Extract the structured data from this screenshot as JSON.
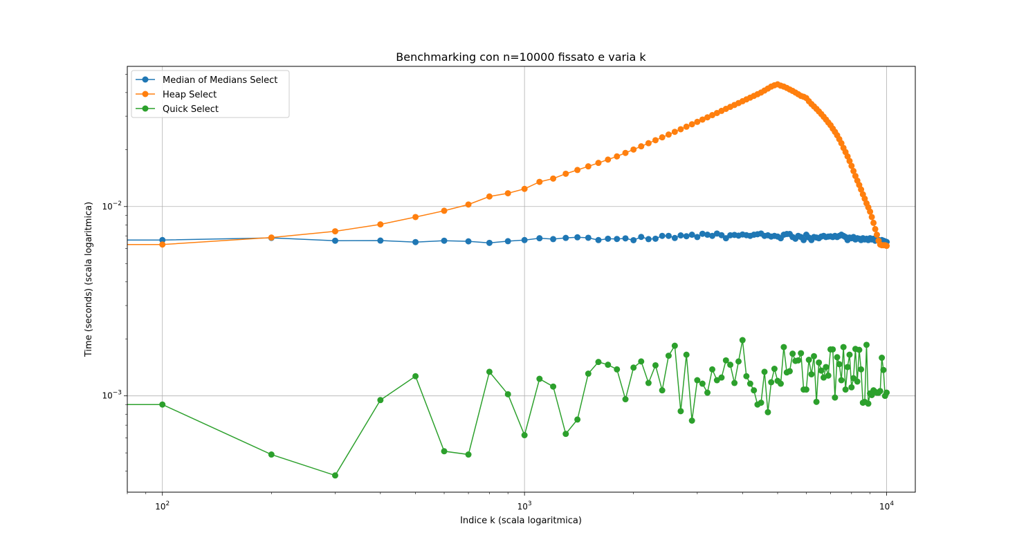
{
  "chart_data": {
    "type": "line",
    "title": "Benchmarking con n=10000 fissato e varia k",
    "xlabel": "Indice k (scala logaritmica)",
    "ylabel": "Time (seconds) (scala logaritmica)",
    "xscale": "log",
    "yscale": "log",
    "xlim": [
      80,
      12000
    ],
    "ylim": [
      0.00031,
      0.055
    ],
    "grid": true,
    "legend_position": "upper-left",
    "x_tick_labels": [
      {
        "base": "10",
        "exp": "2",
        "value": 100
      },
      {
        "base": "10",
        "exp": "3",
        "value": 1000
      },
      {
        "base": "10",
        "exp": "4",
        "value": 10000
      }
    ],
    "y_tick_labels": [
      {
        "base": "10",
        "exp": "−3",
        "value": 0.001
      },
      {
        "base": "10",
        "exp": "−2",
        "value": 0.01
      }
    ],
    "series": [
      {
        "name": "Median of Medians Select",
        "color": "#1f77b4",
        "x": [
          1,
          100,
          200,
          300,
          400,
          500,
          600,
          700,
          800,
          900,
          1000,
          1100,
          1200,
          1300,
          1400,
          1500,
          1600,
          1700,
          1800,
          1900,
          2000,
          2100,
          2200,
          2300,
          2400,
          2500,
          2600,
          2700,
          2800,
          2900,
          3000,
          3100,
          3200,
          3300,
          3400,
          3500,
          3600,
          3700,
          3800,
          3900,
          4000,
          4100,
          4200,
          4300,
          4400,
          4500,
          4600,
          4700,
          4800,
          4900,
          5000,
          5100,
          5200,
          5300,
          5400,
          5500,
          5600,
          5700,
          5800,
          5900,
          6000,
          6100,
          6200,
          6300,
          6400,
          6500,
          6600,
          6700,
          6800,
          6900,
          7000,
          7100,
          7200,
          7300,
          7400,
          7500,
          7600,
          7700,
          7800,
          7900,
          8000,
          8100,
          8200,
          8300,
          8400,
          8500,
          8600,
          8700,
          8800,
          8900,
          9000,
          9100,
          9200,
          9300,
          9400,
          9500,
          9600,
          9700,
          9800,
          9900,
          10000
        ],
        "values": [
          0.00665,
          0.00665,
          0.00683,
          0.0066,
          0.00661,
          0.00649,
          0.0066,
          0.00655,
          0.00643,
          0.00656,
          0.00665,
          0.0068,
          0.00673,
          0.00683,
          0.00688,
          0.00684,
          0.00665,
          0.00676,
          0.00674,
          0.00679,
          0.00664,
          0.00691,
          0.00673,
          0.00676,
          0.007,
          0.007,
          0.00682,
          0.00704,
          0.00697,
          0.0071,
          0.0069,
          0.00718,
          0.0071,
          0.007,
          0.0072,
          0.00706,
          0.0068,
          0.00705,
          0.00708,
          0.00702,
          0.00712,
          0.00706,
          0.007,
          0.0071,
          0.00714,
          0.0072,
          0.007,
          0.00705,
          0.00694,
          0.007,
          0.00694,
          0.0068,
          0.0071,
          0.00716,
          0.00716,
          0.0069,
          0.00676,
          0.007,
          0.0069,
          0.00665,
          0.0071,
          0.00686,
          0.00665,
          0.0069,
          0.00686,
          0.0068,
          0.00694,
          0.007,
          0.0069,
          0.00694,
          0.00696,
          0.0069,
          0.007,
          0.0069,
          0.007,
          0.0071,
          0.007,
          0.0069,
          0.00665,
          0.00686,
          0.0068,
          0.0069,
          0.0067,
          0.0068,
          0.00676,
          0.00665,
          0.0068,
          0.0067,
          0.00676,
          0.00665,
          0.0068,
          0.0067,
          0.00676,
          0.0066,
          0.0067,
          0.00665,
          0.0066,
          0.00665,
          0.0066,
          0.00655,
          0.0065
        ]
      },
      {
        "name": "Heap Select",
        "color": "#ff7f0e",
        "x": [
          1,
          100,
          200,
          300,
          400,
          500,
          600,
          700,
          800,
          900,
          1000,
          1100,
          1200,
          1300,
          1400,
          1500,
          1600,
          1700,
          1800,
          1900,
          2000,
          2100,
          2200,
          2300,
          2400,
          2500,
          2600,
          2700,
          2800,
          2900,
          3000,
          3100,
          3200,
          3300,
          3400,
          3500,
          3600,
          3700,
          3800,
          3900,
          4000,
          4100,
          4200,
          4300,
          4400,
          4500,
          4600,
          4700,
          4800,
          4900,
          5000,
          5100,
          5200,
          5300,
          5400,
          5500,
          5600,
          5700,
          5800,
          5900,
          6000,
          6100,
          6200,
          6300,
          6400,
          6500,
          6600,
          6700,
          6800,
          6900,
          7000,
          7100,
          7200,
          7300,
          7400,
          7500,
          7600,
          7700,
          7800,
          7900,
          8000,
          8100,
          8200,
          8300,
          8400,
          8500,
          8600,
          8700,
          8800,
          8900,
          9000,
          9100,
          9200,
          9300,
          9400,
          9500,
          9600,
          9700,
          9800,
          9900,
          10000
        ],
        "values": [
          0.0063,
          0.0063,
          0.00686,
          0.0074,
          0.00805,
          0.0088,
          0.0095,
          0.01025,
          0.0113,
          0.01175,
          0.0124,
          0.0135,
          0.01405,
          0.0149,
          0.0156,
          0.0163,
          0.017,
          0.0177,
          0.0184,
          0.0192,
          0.02,
          0.0208,
          0.0216,
          0.0224,
          0.0232,
          0.024,
          0.0248,
          0.0256,
          0.0264,
          0.0272,
          0.028,
          0.0288,
          0.0296,
          0.0304,
          0.0312,
          0.032,
          0.0328,
          0.0336,
          0.0344,
          0.0352,
          0.036,
          0.0368,
          0.0376,
          0.0384,
          0.0392,
          0.04,
          0.041,
          0.042,
          0.043,
          0.0437,
          0.0442,
          0.0435,
          0.043,
          0.0423,
          0.0415,
          0.0408,
          0.04,
          0.0392,
          0.0384,
          0.038,
          0.0374,
          0.036,
          0.0348,
          0.0338,
          0.0328,
          0.0318,
          0.0308,
          0.0298,
          0.0288,
          0.0278,
          0.0269,
          0.0258,
          0.0248,
          0.0238,
          0.0227,
          0.0216,
          0.0204,
          0.0194,
          0.0184,
          0.0174,
          0.0164,
          0.0154,
          0.0145,
          0.0137,
          0.013,
          0.0123,
          0.0116,
          0.011,
          0.0104,
          0.0099,
          0.0094,
          0.0088,
          0.0082,
          0.0076,
          0.0071,
          0.0066,
          0.0063,
          0.00625,
          0.00625,
          0.00625,
          0.0062
        ]
      },
      {
        "name": "Quick Select",
        "color": "#2ca02c",
        "x": [
          1,
          100,
          200,
          300,
          400,
          500,
          600,
          700,
          800,
          900,
          1000,
          1100,
          1200,
          1300,
          1400,
          1500,
          1600,
          1700,
          1800,
          1900,
          2000,
          2100,
          2200,
          2300,
          2400,
          2500,
          2600,
          2700,
          2800,
          2900,
          3000,
          3100,
          3200,
          3300,
          3400,
          3500,
          3600,
          3700,
          3800,
          3900,
          4000,
          4100,
          4200,
          4300,
          4400,
          4500,
          4600,
          4700,
          4800,
          4900,
          5000,
          5100,
          5200,
          5300,
          5400,
          5500,
          5600,
          5700,
          5800,
          5900,
          6000,
          6100,
          6200,
          6300,
          6400,
          6500,
          6600,
          6700,
          6800,
          6900,
          7000,
          7100,
          7200,
          7300,
          7400,
          7500,
          7600,
          7700,
          7800,
          7900,
          8000,
          8100,
          8200,
          8300,
          8400,
          8500,
          8600,
          8700,
          8800,
          8900,
          9000,
          9100,
          9200,
          9300,
          9400,
          9500,
          9600,
          9700,
          9800,
          9900,
          10000
        ],
        "values": [
          0.0009,
          0.0009,
          0.00049,
          0.00038,
          0.00095,
          0.00127,
          0.00051,
          0.00049,
          0.00134,
          0.00102,
          0.00062,
          0.00123,
          0.00112,
          0.00063,
          0.00075,
          0.00131,
          0.00151,
          0.00146,
          0.00138,
          0.00096,
          0.00141,
          0.00152,
          0.00117,
          0.00145,
          0.00107,
          0.00163,
          0.00184,
          0.00083,
          0.00165,
          0.00074,
          0.00121,
          0.00116,
          0.00104,
          0.00138,
          0.00121,
          0.00125,
          0.00154,
          0.00146,
          0.00117,
          0.00152,
          0.00197,
          0.00127,
          0.00116,
          0.00107,
          0.0009,
          0.00092,
          0.00134,
          0.00082,
          0.00118,
          0.00139,
          0.0012,
          0.00116,
          0.00181,
          0.00133,
          0.00135,
          0.00167,
          0.00153,
          0.00154,
          0.00168,
          0.00108,
          0.00108,
          0.00155,
          0.0013,
          0.00162,
          0.00093,
          0.0015,
          0.00136,
          0.00125,
          0.00142,
          0.00128,
          0.00176,
          0.00176,
          0.00098,
          0.0016,
          0.00147,
          0.00121,
          0.00181,
          0.00108,
          0.00142,
          0.00165,
          0.00111,
          0.00124,
          0.00177,
          0.00119,
          0.00175,
          0.00138,
          0.00092,
          0.00093,
          0.00186,
          0.00091,
          0.00103,
          0.00101,
          0.00107,
          0.00105,
          0.00104,
          0.00104,
          0.00106,
          0.00159,
          0.00137,
          0.001,
          0.00104
        ]
      }
    ]
  }
}
